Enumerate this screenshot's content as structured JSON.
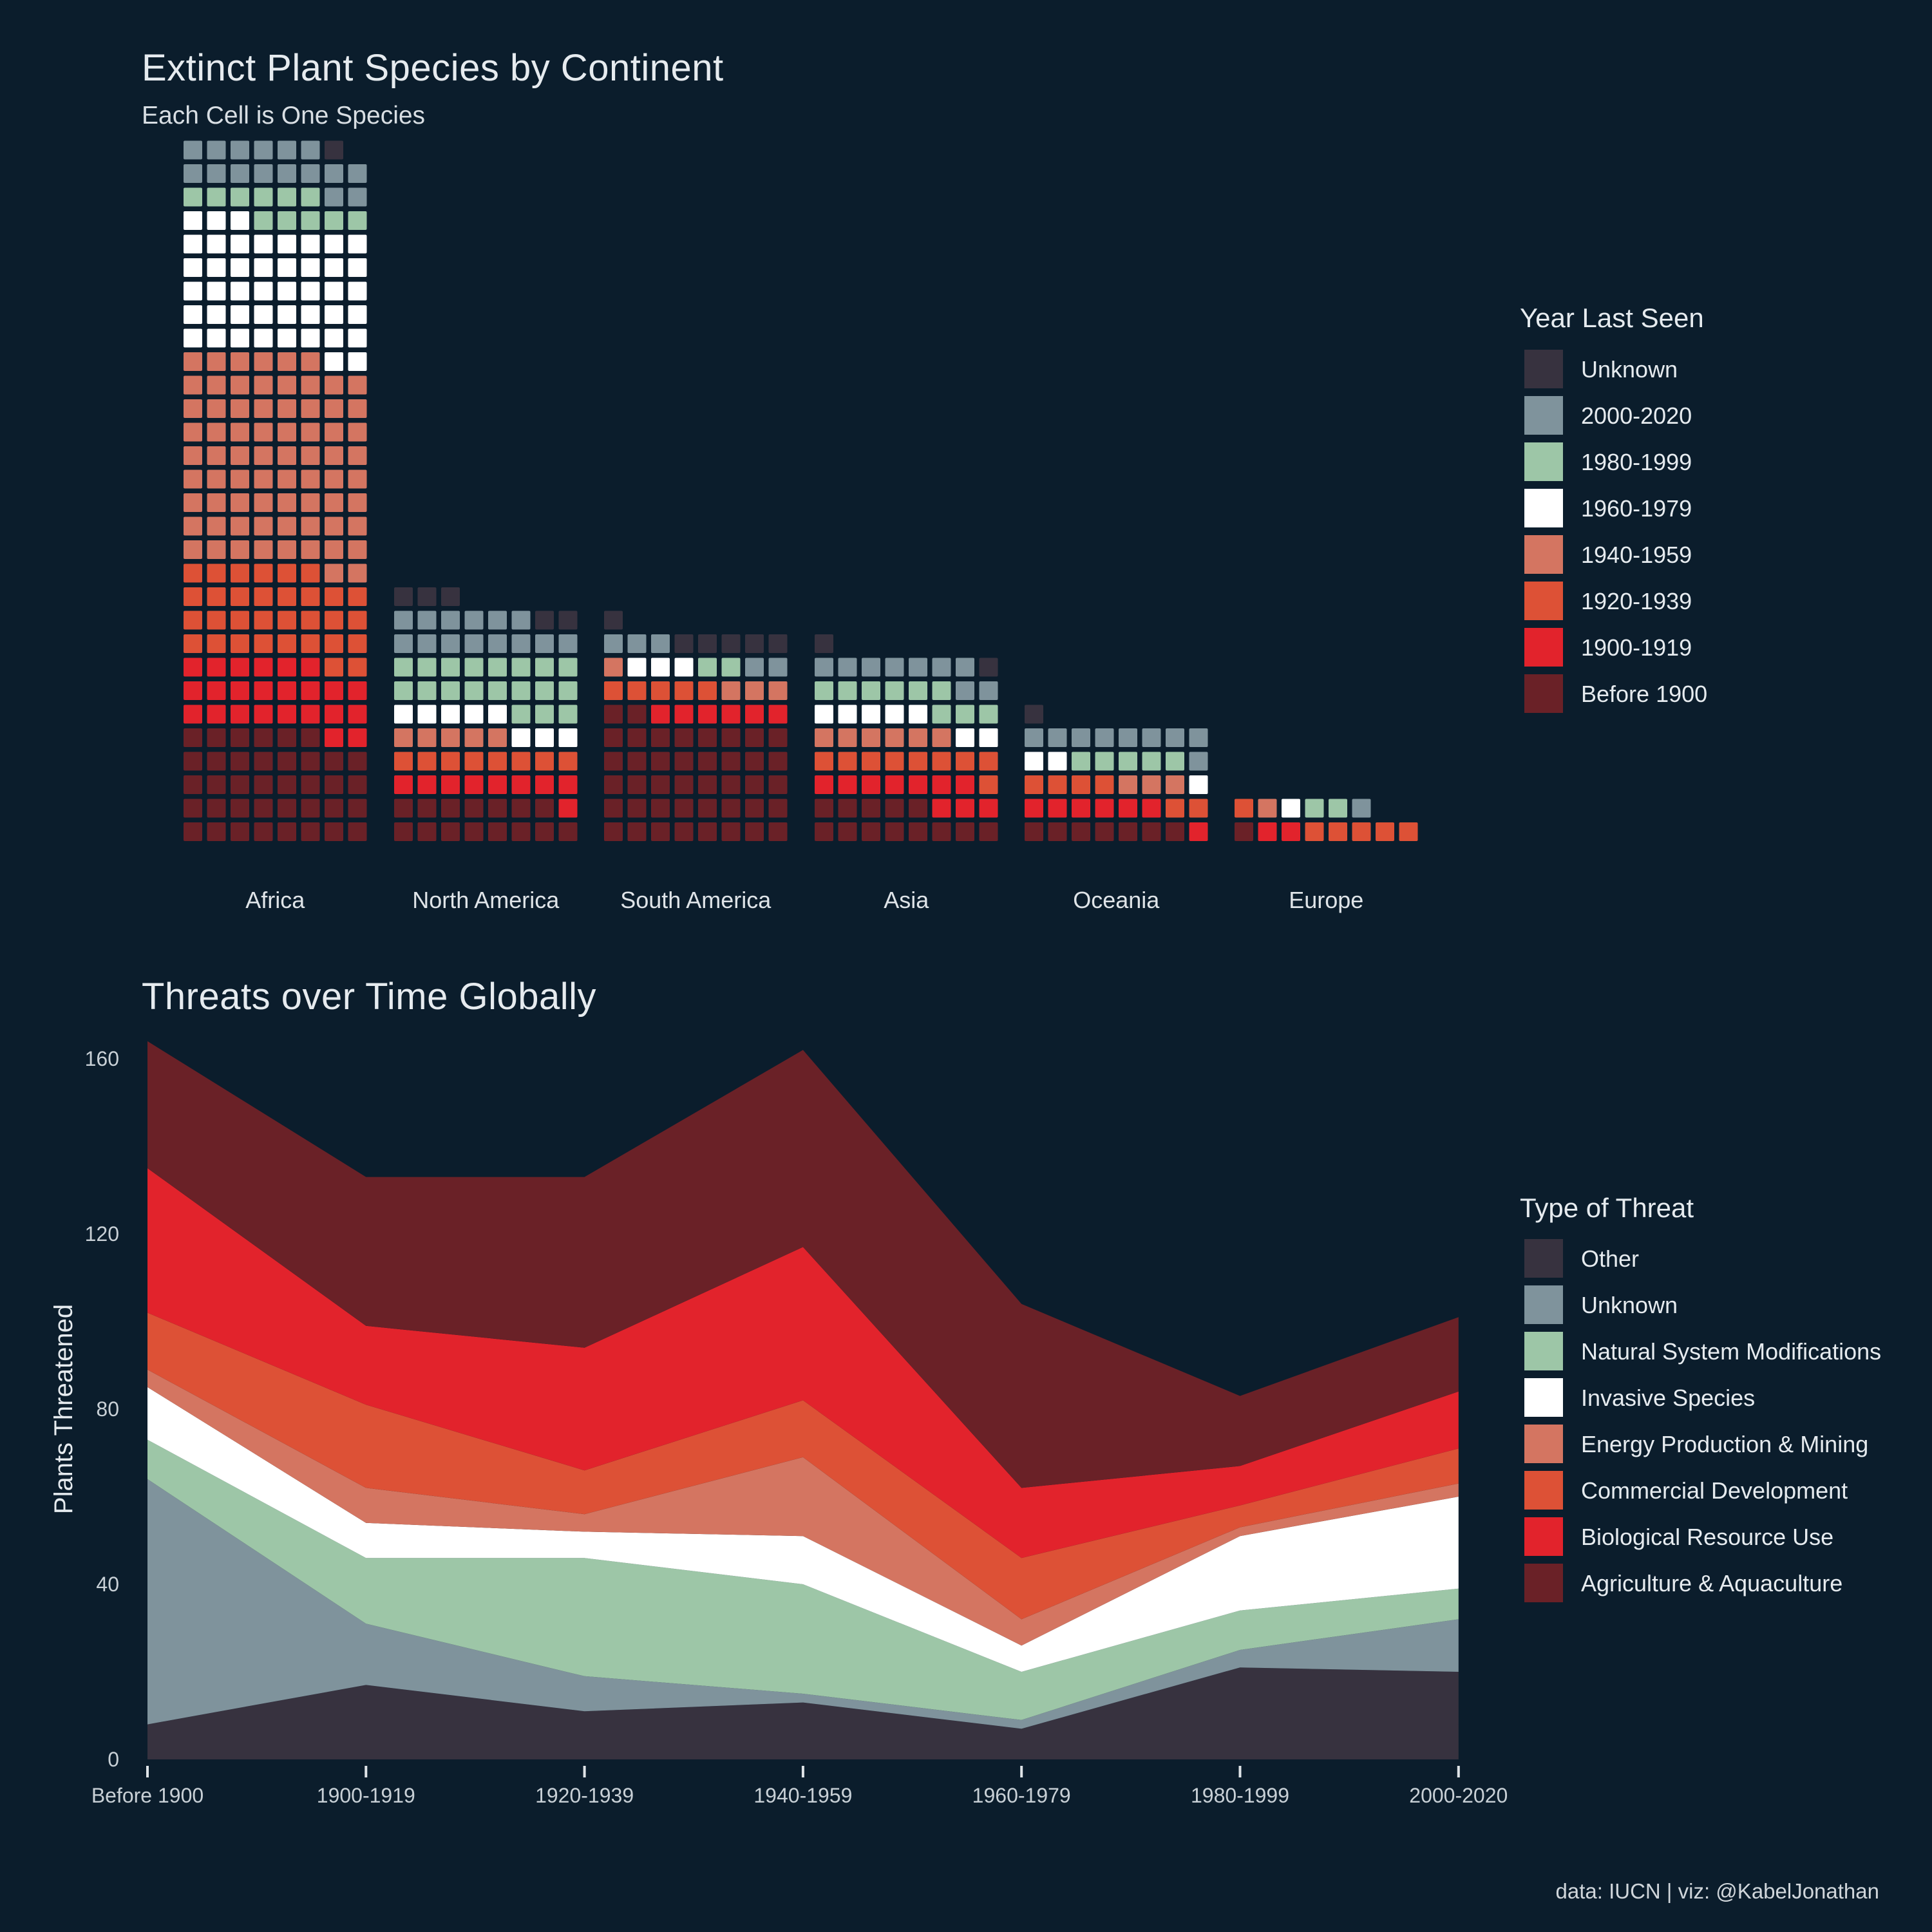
{
  "title": "Extinct Plant Species by Continent",
  "subtitle": "Each Cell is One Species",
  "title2": "Threats over Time Globally",
  "caption": "data: IUCN | viz: @KabelJonathan",
  "colors": {
    "background": "#0b1d2c",
    "c1": "#37323f",
    "c2": "#7f939c",
    "c3": "#9dc6a7",
    "c4": "#ffffff",
    "c5": "#d47561",
    "c6": "#dd5136",
    "c7": "#e2232c",
    "c8": "#6a2127"
  },
  "chart_data": [
    {
      "type": "waffle",
      "legend_title": "Year Last Seen",
      "legend": [
        {
          "label": "Unknown",
          "color": "#37323f"
        },
        {
          "label": "2000-2020",
          "color": "#7f939c"
        },
        {
          "label": "1980-1999",
          "color": "#9dc6a7"
        },
        {
          "label": "1960-1979",
          "color": "#ffffff"
        },
        {
          "label": "1940-1959",
          "color": "#d47561"
        },
        {
          "label": "1920-1939",
          "color": "#dd5136"
        },
        {
          "label": "1900-1919",
          "color": "#e2232c"
        },
        {
          "label": "Before 1900",
          "color": "#6a2127"
        }
      ],
      "continents": [
        {
          "name": "Africa",
          "counts": {
            "Before 1900": 38,
            "1900-1919": 24,
            "1920-1939": 32,
            "1940-1959": 72,
            "1960-1979": 45,
            "1980-1999": 11,
            "2000-2020": 16,
            "Unknown": 1
          }
        },
        {
          "name": "North America",
          "counts": {
            "Before 1900": 15,
            "1900-1919": 9,
            "1920-1939": 8,
            "1940-1959": 5,
            "1960-1979": 8,
            "1980-1999": 19,
            "2000-2020": 14,
            "Unknown": 5
          }
        },
        {
          "name": "South America",
          "counts": {
            "Before 1900": 42,
            "1900-1919": 6,
            "1920-1939": 5,
            "1940-1959": 4,
            "1960-1979": 3,
            "1980-1999": 2,
            "2000-2020": 5,
            "Unknown": 6
          }
        },
        {
          "name": "Asia",
          "counts": {
            "Before 1900": 13,
            "1900-1919": 10,
            "1920-1939": 9,
            "1940-1959": 6,
            "1960-1979": 7,
            "1980-1999": 9,
            "2000-2020": 9,
            "Unknown": 2
          }
        },
        {
          "name": "Oceania",
          "counts": {
            "Before 1900": 7,
            "1900-1919": 7,
            "1920-1939": 6,
            "1940-1959": 3,
            "1960-1979": 3,
            "1980-1999": 5,
            "2000-2020": 9,
            "Unknown": 1
          }
        },
        {
          "name": "Europe",
          "counts": {
            "Before 1900": 1,
            "1900-1919": 2,
            "1920-1939": 6,
            "1940-1959": 1,
            "1960-1979": 1,
            "1980-1999": 2,
            "2000-2020": 1,
            "Unknown": 0
          }
        }
      ]
    },
    {
      "type": "area",
      "stacked": true,
      "ylabel": "Plants Threatened",
      "ylim": [
        0,
        165
      ],
      "yticks": [
        0,
        40,
        80,
        120,
        160
      ],
      "categories": [
        "Before 1900",
        "1900-1919",
        "1920-1939",
        "1940-1959",
        "1960-1979",
        "1980-1999",
        "2000-2020"
      ],
      "legend_title": "Type of Threat",
      "legend": [
        {
          "label": "Other",
          "color": "#37323f"
        },
        {
          "label": "Unknown",
          "color": "#7f939c"
        },
        {
          "label": "Natural System Modifications",
          "color": "#9dc6a7"
        },
        {
          "label": "Invasive Species",
          "color": "#ffffff"
        },
        {
          "label": "Energy Production & Mining",
          "color": "#d47561"
        },
        {
          "label": "Commercial Development",
          "color": "#dd5136"
        },
        {
          "label": "Biological Resource Use",
          "color": "#e2232c"
        },
        {
          "label": "Agriculture & Aquaculture",
          "color": "#6a2127"
        }
      ],
      "series": [
        {
          "name": "Other",
          "values": [
            8,
            17,
            11,
            13,
            7,
            21,
            20
          ]
        },
        {
          "name": "Unknown",
          "values": [
            56,
            14,
            8,
            2,
            2,
            4,
            12
          ]
        },
        {
          "name": "Natural System Modifications",
          "values": [
            9,
            15,
            27,
            25,
            11,
            9,
            7
          ]
        },
        {
          "name": "Invasive Species",
          "values": [
            12,
            8,
            6,
            11,
            6,
            17,
            21
          ]
        },
        {
          "name": "Energy Production & Mining",
          "values": [
            4,
            8,
            4,
            18,
            6,
            2,
            3
          ]
        },
        {
          "name": "Commercial Development",
          "values": [
            13,
            19,
            10,
            13,
            14,
            5,
            8
          ]
        },
        {
          "name": "Biological Resource Use",
          "values": [
            33,
            18,
            28,
            35,
            16,
            9,
            13
          ]
        },
        {
          "name": "Agriculture & Aquaculture",
          "values": [
            29,
            34,
            39,
            45,
            42,
            16,
            17
          ]
        }
      ]
    }
  ]
}
